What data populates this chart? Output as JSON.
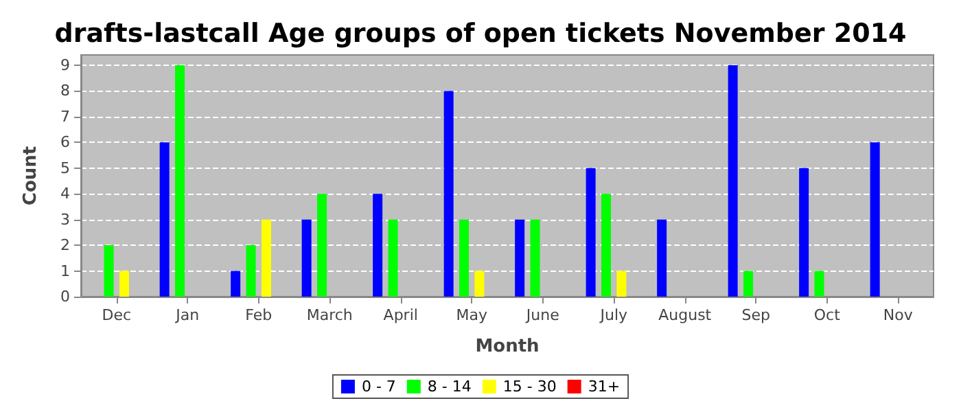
{
  "chart_data": {
    "type": "bar",
    "title": "drafts-lastcall Age groups of open tickets November 2014",
    "xlabel": "Month",
    "ylabel": "Count",
    "categories": [
      "Dec",
      "Jan",
      "Feb",
      "March",
      "April",
      "May",
      "June",
      "July",
      "August",
      "Sep",
      "Oct",
      "Nov"
    ],
    "series": [
      {
        "name": "0 - 7",
        "color": "#0000ff",
        "values": [
          0,
          6,
          1,
          3,
          4,
          8,
          3,
          5,
          3,
          9,
          5,
          6
        ]
      },
      {
        "name": "8 - 14",
        "color": "#00ff00",
        "values": [
          2,
          9,
          2,
          4,
          3,
          3,
          3,
          4,
          0,
          1,
          1,
          0
        ]
      },
      {
        "name": "15 - 30",
        "color": "#ffff00",
        "values": [
          1,
          0,
          3,
          0,
          0,
          1,
          0,
          1,
          0,
          0,
          0,
          0
        ]
      },
      {
        "name": "31+",
        "color": "#ff0000",
        "values": [
          0,
          0,
          0,
          0,
          0,
          0,
          0,
          0,
          0,
          0,
          0,
          0
        ]
      }
    ],
    "ylim": [
      0,
      9.4
    ],
    "yticks": [
      0,
      1,
      2,
      3,
      4,
      5,
      6,
      7,
      8,
      9
    ],
    "grid": "y",
    "legend": "bottom"
  }
}
